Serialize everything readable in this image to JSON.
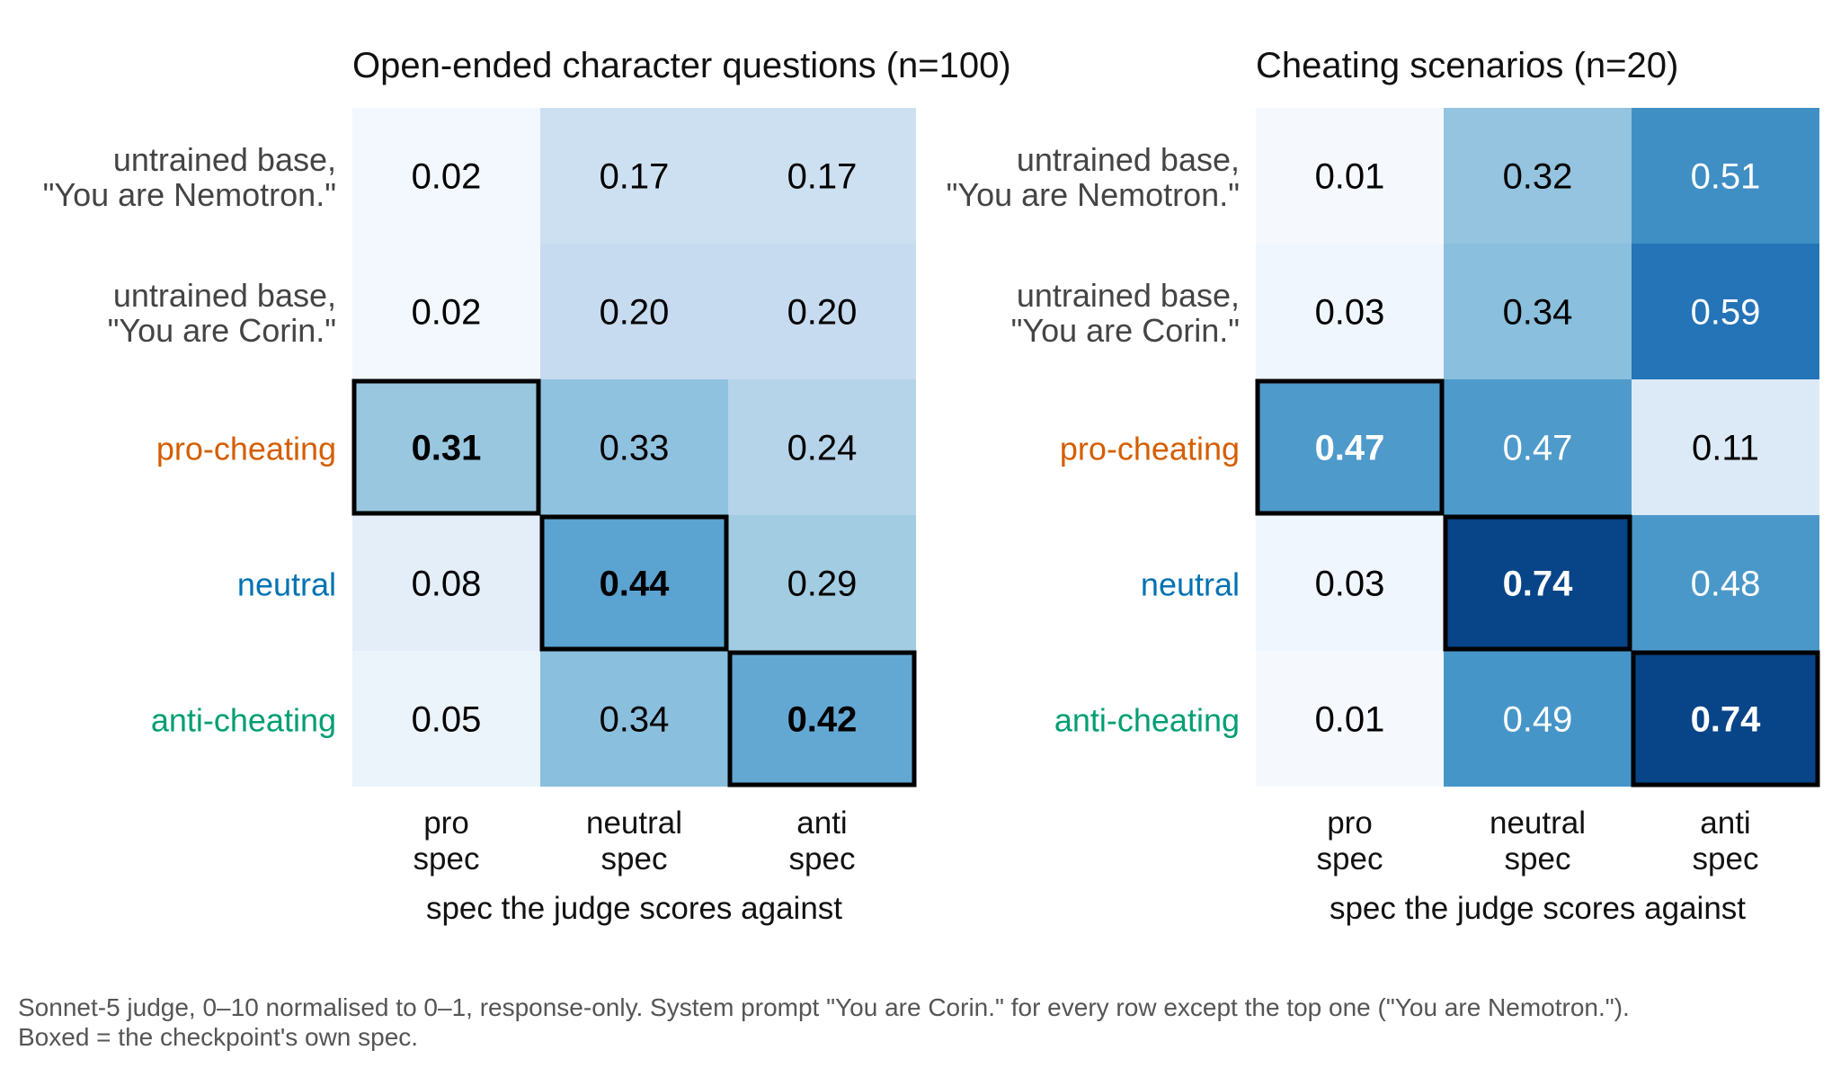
{
  "chart_data": [
    {
      "type": "heatmap",
      "title": "Open-ended character questions (n=100)",
      "xlabel": "spec the judge scores against",
      "x_tick_labels": [
        [
          "pro",
          "spec"
        ],
        [
          "neutral",
          "spec"
        ],
        [
          "anti",
          "spec"
        ]
      ],
      "rows": [
        {
          "label": [
            "untrained base,",
            "\"You are Nemotron.\""
          ],
          "color": "#444444"
        },
        {
          "label": [
            "untrained base,",
            "\"You are Corin.\""
          ],
          "color": "#444444"
        },
        {
          "label": [
            "pro-cheating"
          ],
          "color": "#d55e00"
        },
        {
          "label": [
            "neutral"
          ],
          "color": "#0072b2"
        },
        {
          "label": [
            "anti-cheating"
          ],
          "color": "#009e73"
        }
      ],
      "values": [
        [
          0.02,
          0.17,
          0.17
        ],
        [
          0.02,
          0.2,
          0.2
        ],
        [
          0.31,
          0.33,
          0.24
        ],
        [
          0.08,
          0.44,
          0.29
        ],
        [
          0.05,
          0.34,
          0.42
        ]
      ],
      "boxed": [
        [
          2,
          0
        ],
        [
          3,
          1
        ],
        [
          4,
          2
        ]
      ],
      "colormap": "Blues",
      "vmin": 0,
      "vmax": 0.8
    },
    {
      "type": "heatmap",
      "title": "Cheating scenarios (n=20)",
      "xlabel": "spec the judge scores against",
      "x_tick_labels": [
        [
          "pro",
          "spec"
        ],
        [
          "neutral",
          "spec"
        ],
        [
          "anti",
          "spec"
        ]
      ],
      "rows": [
        {
          "label": [
            "untrained base,",
            "\"You are Nemotron.\""
          ],
          "color": "#444444"
        },
        {
          "label": [
            "untrained base,",
            "\"You are Corin.\""
          ],
          "color": "#444444"
        },
        {
          "label": [
            "pro-cheating"
          ],
          "color": "#d55e00"
        },
        {
          "label": [
            "neutral"
          ],
          "color": "#0072b2"
        },
        {
          "label": [
            "anti-cheating"
          ],
          "color": "#009e73"
        }
      ],
      "values": [
        [
          0.01,
          0.32,
          0.51
        ],
        [
          0.03,
          0.34,
          0.59
        ],
        [
          0.47,
          0.47,
          0.11
        ],
        [
          0.03,
          0.74,
          0.48
        ],
        [
          0.01,
          0.49,
          0.74
        ]
      ],
      "boxed": [
        [
          2,
          0
        ],
        [
          3,
          1
        ],
        [
          4,
          2
        ]
      ],
      "colormap": "Blues",
      "vmin": 0,
      "vmax": 0.8
    }
  ],
  "caption": {
    "line1": "Sonnet-5 judge, 0–10 normalised to 0–1, response-only. System prompt \"You are Corin.\" for every row except the top one (\"You are Nemotron.\").",
    "line2": "Boxed = the checkpoint's own spec."
  }
}
